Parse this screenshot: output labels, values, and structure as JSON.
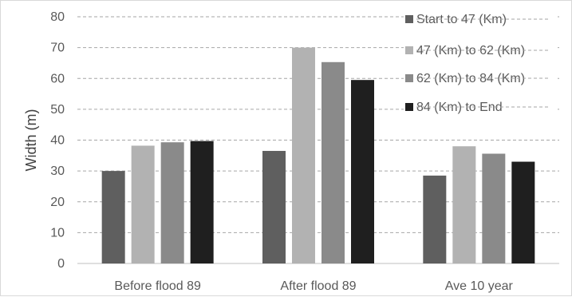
{
  "chart_data": {
    "type": "bar",
    "categories": [
      "Before flood 89",
      "After flood 89",
      "Ave 10 year"
    ],
    "series": [
      {
        "name": "Start to 47 (Km)",
        "color": "#5f5f5f",
        "values": [
          30,
          36.5,
          28.5
        ]
      },
      {
        "name": "47 (Km) to 62 (Km)",
        "color": "#b2b2b2",
        "values": [
          38.2,
          70,
          38
        ]
      },
      {
        "name": "62 (Km) to 84 (Km)",
        "color": "#8a8a8a",
        "values": [
          39.3,
          65.3,
          35.6
        ]
      },
      {
        "name": "84 (Km) to End",
        "color": "#1f1f1f",
        "values": [
          39.7,
          59.5,
          33
        ]
      }
    ],
    "xlabel": "",
    "ylabel": "Width (m)",
    "ylim": [
      0,
      80
    ],
    "yticks": [
      0,
      10,
      20,
      30,
      40,
      50,
      60,
      70,
      80
    ],
    "grid": "horizontal-dashed",
    "legend_position": "top-right"
  }
}
